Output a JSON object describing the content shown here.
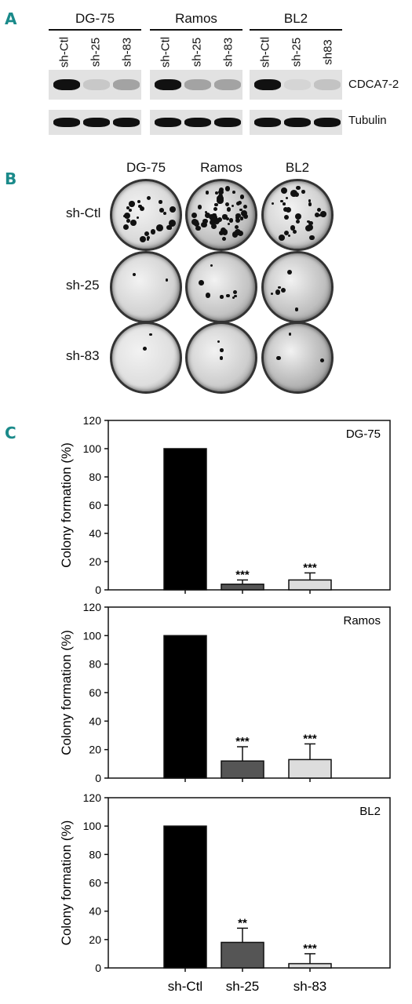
{
  "panels": {
    "a": "A",
    "b": "B",
    "c": "C"
  },
  "western": {
    "cell_lines": [
      "DG-75",
      "Ramos",
      "BL2"
    ],
    "lanes": [
      [
        "sh-Ctl",
        "sh-25",
        "sh-83"
      ],
      [
        "sh-Ctl",
        "sh-25",
        "sh-83"
      ],
      [
        "sh-Ctl",
        "sh-25",
        "sh83"
      ]
    ],
    "bands": [
      "CDCA7-2",
      "Tubulin"
    ],
    "intensity": {
      "CDCA7-2": [
        [
          1.0,
          0.12,
          0.3
        ],
        [
          1.0,
          0.3,
          0.3
        ],
        [
          1.0,
          0.05,
          0.15
        ]
      ],
      "Tubulin": [
        [
          1.0,
          1.0,
          1.0
        ],
        [
          1.0,
          1.0,
          1.0
        ],
        [
          1.0,
          1.0,
          1.0
        ]
      ]
    }
  },
  "colony": {
    "columns": [
      "DG-75",
      "Ramos",
      "BL2"
    ],
    "rows": [
      "sh-Ctl",
      "sh-25",
      "sh-83"
    ]
  },
  "chart_data": [
    {
      "type": "bar",
      "title": "DG-75",
      "ylabel": "Colony formation (%)",
      "categories": [
        "sh-Ctl",
        "sh-25",
        "sh-83"
      ],
      "values": [
        100,
        4,
        7
      ],
      "errors": [
        0,
        3,
        5
      ],
      "annotations": [
        "",
        "***",
        "***"
      ],
      "ylim": [
        0,
        120
      ],
      "yticks": [
        0,
        20,
        40,
        60,
        80,
        100,
        120
      ],
      "colors": [
        "#000000",
        "#555555",
        "#dddddd"
      ]
    },
    {
      "type": "bar",
      "title": "Ramos",
      "ylabel": "Colony formation (%)",
      "categories": [
        "sh-Ctl",
        "sh-25",
        "sh-83"
      ],
      "values": [
        100,
        12,
        13
      ],
      "errors": [
        0,
        10,
        11
      ],
      "annotations": [
        "",
        "***",
        "***"
      ],
      "ylim": [
        0,
        120
      ],
      "yticks": [
        0,
        20,
        40,
        60,
        80,
        100,
        120
      ],
      "colors": [
        "#000000",
        "#555555",
        "#dddddd"
      ]
    },
    {
      "type": "bar",
      "title": "BL2",
      "ylabel": "Colony formation (%)",
      "categories": [
        "sh-Ctl",
        "sh-25",
        "sh-83"
      ],
      "values": [
        100,
        18,
        3
      ],
      "errors": [
        0,
        10,
        7
      ],
      "annotations": [
        "",
        "**",
        "***"
      ],
      "ylim": [
        0,
        120
      ],
      "yticks": [
        0,
        20,
        40,
        60,
        80,
        100,
        120
      ],
      "colors": [
        "#000000",
        "#555555",
        "#dddddd"
      ],
      "show_xticklabels": true
    }
  ]
}
